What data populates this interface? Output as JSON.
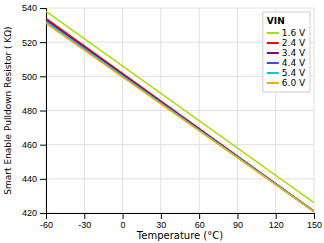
{
  "chart_data": {
    "type": "line",
    "xlabel": "Temperature (°C)",
    "ylabel": "Smart Enable Pulldown Resistor ( KΩ)",
    "x": [
      -60,
      150
    ],
    "xlim": [
      -60,
      150
    ],
    "ylim": [
      420,
      540
    ],
    "xticks": [
      -60,
      -30,
      0,
      30,
      60,
      90,
      120,
      150
    ],
    "yticks": [
      420,
      440,
      460,
      480,
      500,
      520,
      540
    ],
    "series": [
      {
        "name": "1.6 V",
        "color": "#aadd00",
        "values": [
          538,
          426
        ]
      },
      {
        "name": "2.4 V",
        "color": "#ff0000",
        "values": [
          534,
          421
        ]
      },
      {
        "name": "3.4 V",
        "color": "#880088",
        "values": [
          533,
          421
        ]
      },
      {
        "name": "4.4 V",
        "color": "#4444ff",
        "values": [
          532,
          421
        ]
      },
      {
        "name": "5.4 V",
        "color": "#00cccc",
        "values": [
          532,
          421
        ]
      },
      {
        "name": "6.0 V",
        "color": "#ffaa00",
        "values": [
          531,
          421
        ]
      }
    ],
    "legend_title": "VIN",
    "legend": "upper right",
    "grid": true
  }
}
